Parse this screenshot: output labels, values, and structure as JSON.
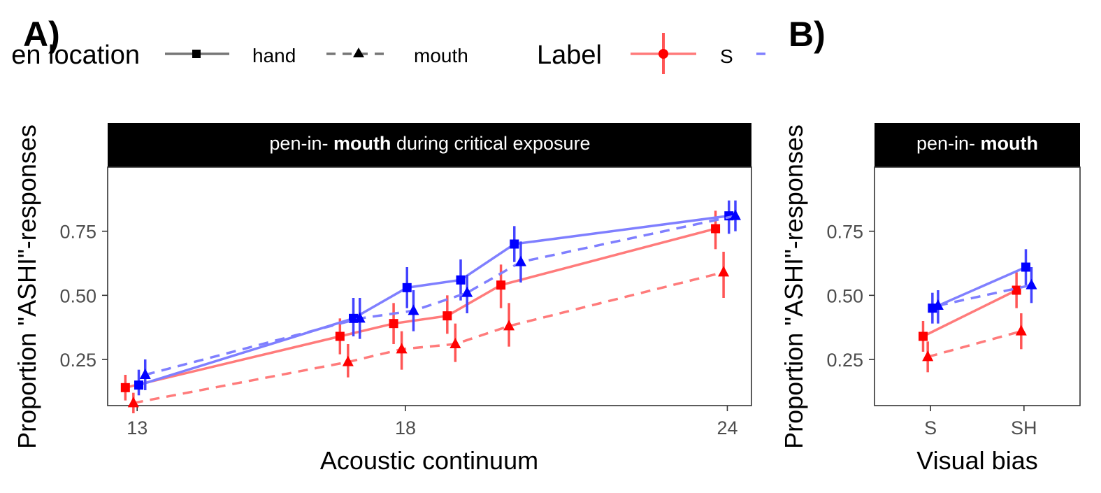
{
  "panel_labels": {
    "a": "A)",
    "b": "B)"
  },
  "legend": {
    "pen_location_title": "en location",
    "pen_hand": "hand",
    "pen_mouth": "mouth",
    "label_title": "Label",
    "label_s": "S"
  },
  "colors": {
    "label_S": "#ff0000",
    "label_SH": "#0000ff",
    "legend_line": "#777777",
    "strip_bg": "#000000",
    "strip_text": "#ffffff"
  },
  "chart_data": [
    {
      "type": "line",
      "panel": "A",
      "strip": {
        "prefix": "pen-in- ",
        "bold": "mouth",
        "suffix": " during critical exposure"
      },
      "xlabel": "Acoustic continuum",
      "ylabel": "Proportion \"ASHI\"-responses",
      "xlim": [
        12.45,
        24.45
      ],
      "ylim": [
        0.07,
        1.0
      ],
      "xticks": [
        13,
        18,
        24
      ],
      "yticks": [
        0.25,
        0.5,
        0.75
      ],
      "xtick_labels": [
        "13",
        "18",
        "24"
      ],
      "ytick_labels": [
        "0.25",
        "0.50",
        "0.75"
      ],
      "grid": false,
      "series": [
        {
          "label": "S",
          "pen_location": "hand",
          "color": "#ff0000",
          "marker": "square",
          "dash": false,
          "points": [
            {
              "x": 12.78,
              "y": 0.14,
              "lo": 0.09,
              "hi": 0.19
            },
            {
              "x": 16.78,
              "y": 0.34,
              "lo": 0.27,
              "hi": 0.41
            },
            {
              "x": 17.78,
              "y": 0.39,
              "lo": 0.31,
              "hi": 0.47
            },
            {
              "x": 18.78,
              "y": 0.42,
              "lo": 0.35,
              "hi": 0.5
            },
            {
              "x": 19.78,
              "y": 0.54,
              "lo": 0.45,
              "hi": 0.62
            },
            {
              "x": 23.78,
              "y": 0.76,
              "lo": 0.68,
              "hi": 0.83
            }
          ]
        },
        {
          "label": "S",
          "pen_location": "mouth",
          "color": "#ff0000",
          "marker": "triangle",
          "dash": true,
          "points": [
            {
              "x": 12.93,
              "y": 0.08,
              "lo": 0.04,
              "hi": 0.12
            },
            {
              "x": 16.93,
              "y": 0.24,
              "lo": 0.18,
              "hi": 0.31
            },
            {
              "x": 17.93,
              "y": 0.29,
              "lo": 0.21,
              "hi": 0.36
            },
            {
              "x": 18.93,
              "y": 0.31,
              "lo": 0.24,
              "hi": 0.39
            },
            {
              "x": 19.93,
              "y": 0.38,
              "lo": 0.3,
              "hi": 0.47
            },
            {
              "x": 23.93,
              "y": 0.59,
              "lo": 0.49,
              "hi": 0.67
            }
          ]
        },
        {
          "label": "SH",
          "pen_location": "hand",
          "color": "#0000ff",
          "marker": "square",
          "dash": false,
          "points": [
            {
              "x": 13.03,
              "y": 0.15,
              "lo": 0.11,
              "hi": 0.21
            },
            {
              "x": 17.03,
              "y": 0.41,
              "lo": 0.34,
              "hi": 0.49
            },
            {
              "x": 18.03,
              "y": 0.53,
              "lo": 0.45,
              "hi": 0.61
            },
            {
              "x": 19.03,
              "y": 0.56,
              "lo": 0.48,
              "hi": 0.64
            },
            {
              "x": 20.03,
              "y": 0.7,
              "lo": 0.63,
              "hi": 0.77
            },
            {
              "x": 24.03,
              "y": 0.81,
              "lo": 0.74,
              "hi": 0.87
            }
          ]
        },
        {
          "label": "SH",
          "pen_location": "mouth",
          "color": "#0000ff",
          "marker": "triangle",
          "dash": true,
          "points": [
            {
              "x": 13.15,
              "y": 0.19,
              "lo": 0.13,
              "hi": 0.25
            },
            {
              "x": 17.15,
              "y": 0.41,
              "lo": 0.33,
              "hi": 0.49
            },
            {
              "x": 18.15,
              "y": 0.44,
              "lo": 0.36,
              "hi": 0.52
            },
            {
              "x": 19.15,
              "y": 0.51,
              "lo": 0.43,
              "hi": 0.58
            },
            {
              "x": 20.15,
              "y": 0.63,
              "lo": 0.55,
              "hi": 0.71
            },
            {
              "x": 24.15,
              "y": 0.81,
              "lo": 0.75,
              "hi": 0.87
            }
          ]
        }
      ]
    },
    {
      "type": "line",
      "panel": "B",
      "strip": {
        "prefix": "pen-in- ",
        "bold": "mouth",
        "suffix": ""
      },
      "xlabel": "Visual bias",
      "ylabel": "Proportion \"ASHI\"-responses",
      "xcategories": [
        "S",
        "SH"
      ],
      "xlim": [
        0.4,
        2.6
      ],
      "ylim": [
        0.07,
        1.0
      ],
      "yticks": [
        0.25,
        0.5,
        0.75
      ],
      "ytick_labels": [
        "0.25",
        "0.50",
        "0.75"
      ],
      "grid": false,
      "series": [
        {
          "label": "S",
          "pen_location": "hand",
          "color": "#ff0000",
          "marker": "square",
          "dash": false,
          "points": [
            {
              "x": 0.92,
              "y": 0.34,
              "lo": 0.28,
              "hi": 0.4
            },
            {
              "x": 1.92,
              "y": 0.52,
              "lo": 0.45,
              "hi": 0.59
            }
          ]
        },
        {
          "label": "S",
          "pen_location": "mouth",
          "color": "#ff0000",
          "marker": "triangle",
          "dash": true,
          "points": [
            {
              "x": 0.97,
              "y": 0.26,
              "lo": 0.2,
              "hi": 0.32
            },
            {
              "x": 1.97,
              "y": 0.36,
              "lo": 0.29,
              "hi": 0.43
            }
          ]
        },
        {
          "label": "SH",
          "pen_location": "hand",
          "color": "#0000ff",
          "marker": "square",
          "dash": false,
          "points": [
            {
              "x": 1.02,
              "y": 0.45,
              "lo": 0.39,
              "hi": 0.51
            },
            {
              "x": 2.02,
              "y": 0.61,
              "lo": 0.54,
              "hi": 0.68
            }
          ]
        },
        {
          "label": "SH",
          "pen_location": "mouth",
          "color": "#0000ff",
          "marker": "triangle",
          "dash": true,
          "points": [
            {
              "x": 1.08,
              "y": 0.46,
              "lo": 0.39,
              "hi": 0.52
            },
            {
              "x": 2.08,
              "y": 0.54,
              "lo": 0.47,
              "hi": 0.61
            }
          ]
        }
      ]
    }
  ]
}
